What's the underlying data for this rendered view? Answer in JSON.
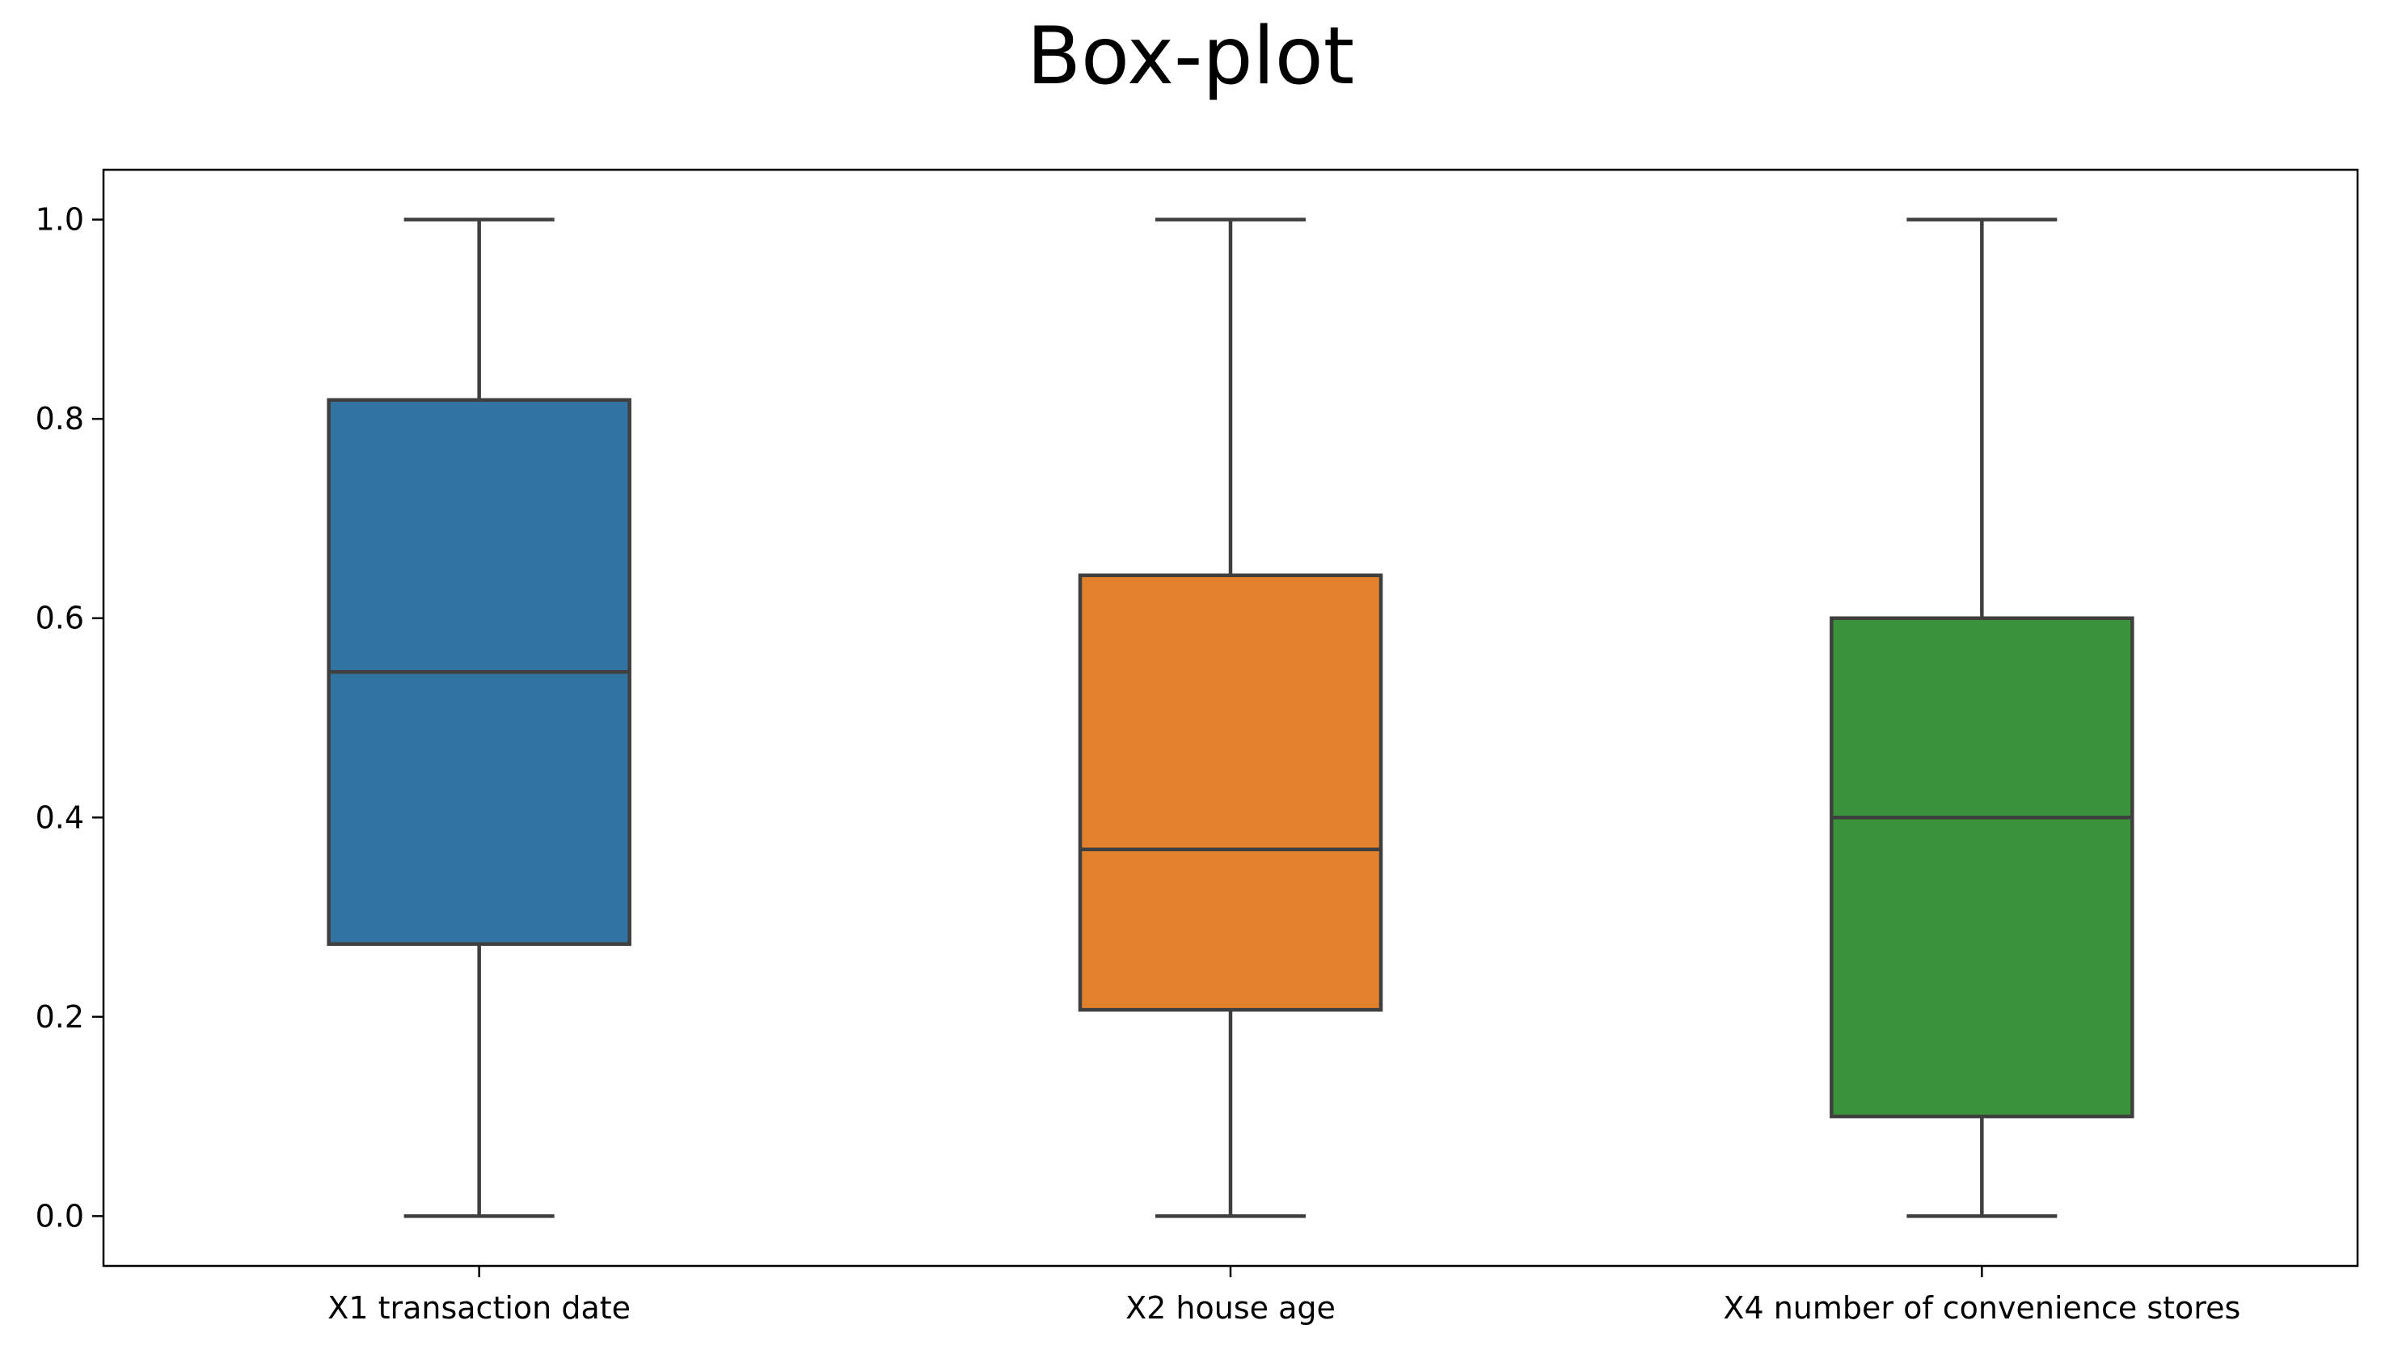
{
  "chart_data": {
    "type": "box",
    "title": "Box-plot",
    "xlabel": "",
    "ylabel": "",
    "ylim": [
      -0.05,
      1.05
    ],
    "yticks": [
      0.0,
      0.2,
      0.4,
      0.6,
      0.8,
      1.0
    ],
    "ytick_labels": [
      "0.0",
      "0.2",
      "0.4",
      "0.6",
      "0.8",
      "1.0"
    ],
    "grid": false,
    "categories": [
      "X1 transaction date",
      "X2 house age",
      "X4 number of convenience stores"
    ],
    "boxes": [
      {
        "category": "X1 transaction date",
        "whisker_low": 0.0,
        "q1": 0.273,
        "median": 0.546,
        "q3": 0.819,
        "whisker_high": 1.0,
        "color": "#3274a1"
      },
      {
        "category": "X2 house age",
        "whisker_low": 0.0,
        "q1": 0.207,
        "median": 0.368,
        "q3": 0.643,
        "whisker_high": 1.0,
        "color": "#e1812c"
      },
      {
        "category": "X4 number of convenience stores",
        "whisker_low": 0.0,
        "q1": 0.1,
        "median": 0.4,
        "q3": 0.6,
        "whisker_high": 1.0,
        "color": "#3a923a"
      }
    ]
  }
}
